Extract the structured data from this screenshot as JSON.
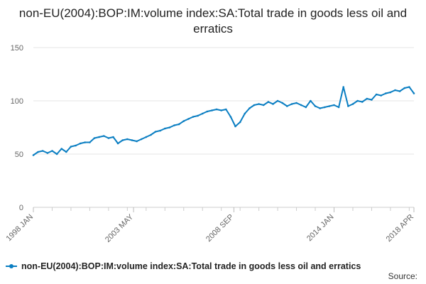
{
  "chart_data": {
    "type": "line",
    "title": "non-EU(2004):BOP:IM:volume index:SA:Total trade in goods less oil and erratics",
    "xlabel": "",
    "ylabel": "",
    "ylim": [
      0,
      150
    ],
    "y_ticks": [
      0,
      50,
      100,
      150
    ],
    "x_range": [
      1998.0,
      2018.25
    ],
    "x_tick_labels": [
      {
        "label": "1998 JAN",
        "x": 1998.0
      },
      {
        "label": "2003 MAY",
        "x": 2003.33
      },
      {
        "label": "2008 SEP",
        "x": 2008.67
      },
      {
        "label": "2014 JAN",
        "x": 2014.0
      },
      {
        "label": "2018 APR",
        "x": 2018.25
      }
    ],
    "grid": true,
    "legend_position": "bottom-left",
    "series": [
      {
        "name": "non-EU(2004):BOP:IM:volume index:SA:Total trade in goods less oil and erratics",
        "color": "#0a7ec2",
        "x": [
          1998.0,
          1998.25,
          1998.5,
          1998.75,
          1999.0,
          1999.25,
          1999.5,
          1999.75,
          2000.0,
          2000.25,
          2000.5,
          2000.75,
          2001.0,
          2001.25,
          2001.5,
          2001.75,
          2002.0,
          2002.25,
          2002.5,
          2002.75,
          2003.0,
          2003.25,
          2003.5,
          2003.75,
          2004.0,
          2004.25,
          2004.5,
          2004.75,
          2005.0,
          2005.25,
          2005.5,
          2005.75,
          2006.0,
          2006.25,
          2006.5,
          2006.75,
          2007.0,
          2007.25,
          2007.5,
          2007.75,
          2008.0,
          2008.25,
          2008.5,
          2008.75,
          2009.0,
          2009.25,
          2009.5,
          2009.75,
          2010.0,
          2010.25,
          2010.5,
          2010.75,
          2011.0,
          2011.25,
          2011.5,
          2011.75,
          2012.0,
          2012.25,
          2012.5,
          2012.75,
          2013.0,
          2013.25,
          2013.5,
          2013.75,
          2014.0,
          2014.25,
          2014.5,
          2014.75,
          2015.0,
          2015.25,
          2015.5,
          2015.75,
          2016.0,
          2016.25,
          2016.5,
          2016.75,
          2017.0,
          2017.25,
          2017.5,
          2017.75,
          2018.0,
          2018.25
        ],
        "values": [
          49,
          52,
          53,
          51,
          53,
          50,
          55,
          52,
          57,
          58,
          60,
          61,
          61,
          65,
          66,
          67,
          65,
          66,
          60,
          63,
          64,
          63,
          62,
          64,
          66,
          68,
          71,
          72,
          74,
          75,
          77,
          78,
          81,
          83,
          85,
          86,
          88,
          90,
          91,
          92,
          91,
          92,
          85,
          76,
          80,
          88,
          93,
          96,
          97,
          96,
          99,
          97,
          100,
          98,
          95,
          97,
          98,
          96,
          94,
          100,
          95,
          93,
          94,
          95,
          96,
          94,
          113,
          95,
          97,
          100,
          99,
          102,
          101,
          106,
          105,
          107,
          108,
          110,
          109,
          112,
          113,
          107
        ]
      }
    ]
  },
  "legend": {
    "label": "non-EU(2004):BOP:IM:volume index:SA:Total trade in goods less oil and erratics"
  },
  "source": "Source:"
}
